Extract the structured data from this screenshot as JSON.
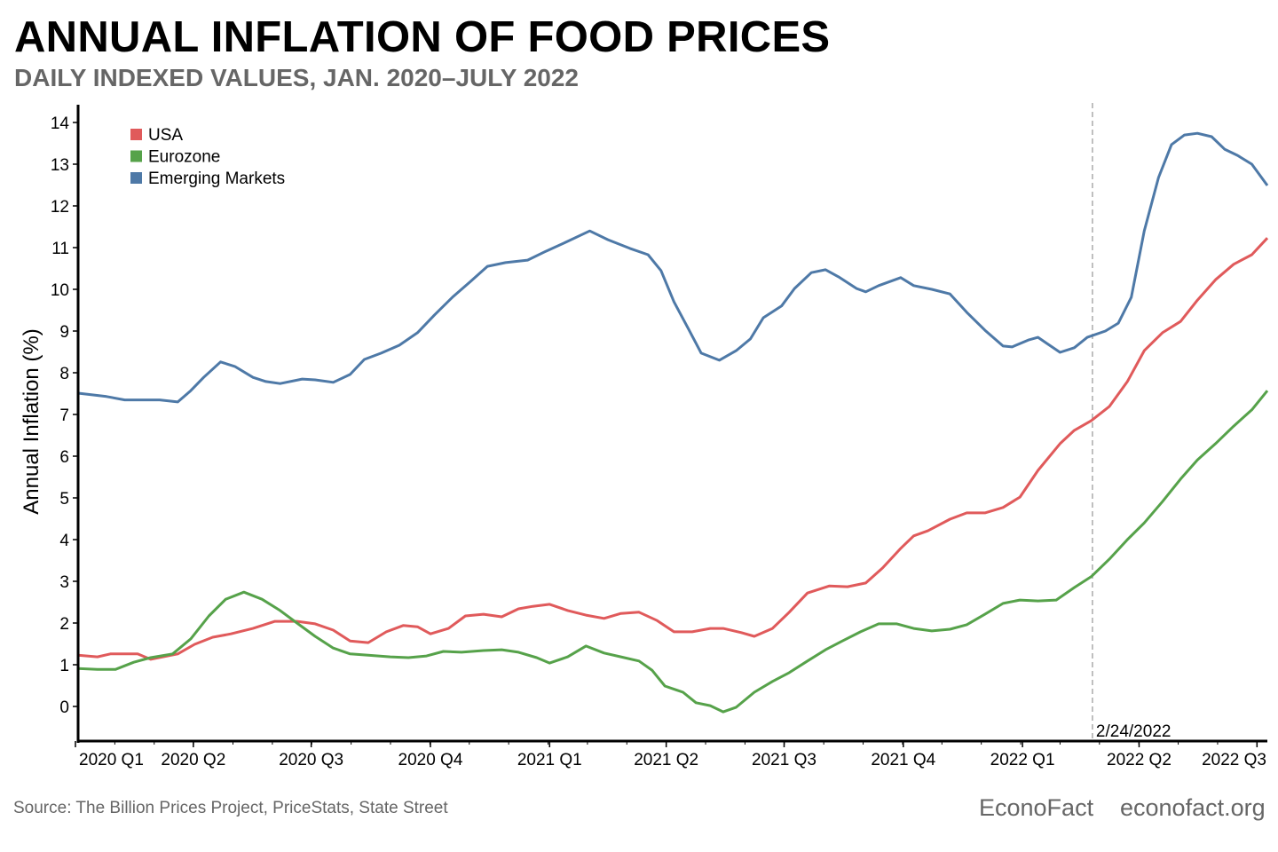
{
  "chart_data": {
    "type": "line",
    "title": "ANNUAL INFLATION OF FOOD PRICES",
    "subtitle": "DAILY INDEXED VALUES, JAN. 2020–JULY 2022",
    "xlabel": "",
    "ylabel": "Annual Inflation (%)",
    "x_unit": "days since 2020-01-01",
    "xlim": [
      0,
      920
    ],
    "ylim": [
      -0.85,
      14.6
    ],
    "yticks": [
      0,
      1,
      2,
      3,
      4,
      5,
      6,
      7,
      8,
      9,
      10,
      11,
      12,
      13,
      14
    ],
    "xticks": [
      {
        "label": "2020 Q1",
        "x": 0
      },
      {
        "label": "2020 Q2",
        "x": 91
      },
      {
        "label": "2020 Q3",
        "x": 182
      },
      {
        "label": "2020 Q4",
        "x": 274
      },
      {
        "label": "2021 Q1",
        "x": 366
      },
      {
        "label": "2021 Q2",
        "x": 456
      },
      {
        "label": "2021 Q3",
        "x": 547
      },
      {
        "label": "2021 Q4",
        "x": 639
      },
      {
        "label": "2022 Q1",
        "x": 731
      },
      {
        "label": "2022 Q2",
        "x": 821
      },
      {
        "label": "2022 Q3",
        "x": 912
      }
    ],
    "grid": false,
    "legend_position": "top-left",
    "annotation": {
      "label": "2/24/2022",
      "x": 785
    },
    "series": [
      {
        "name": "USA",
        "color": "#e05a5b",
        "x": [
          2,
          17,
          27,
          48,
          58,
          79,
          92,
          106,
          120,
          137,
          154,
          171,
          185,
          199,
          212,
          226,
          240,
          253,
          264,
          274,
          288,
          301,
          315,
          329,
          342,
          353,
          366,
          380,
          394,
          408,
          421,
          435,
          449,
          462,
          476,
          490,
          500,
          514,
          524,
          538,
          551,
          565,
          582,
          596,
          610,
          623,
          637,
          647,
          658,
          675,
          688,
          702,
          716,
          729,
          743,
          760,
          771,
          784,
          798,
          812,
          825,
          839,
          853,
          866,
          880,
          894,
          908,
          920
        ],
        "y": [
          1.23,
          1.19,
          1.26,
          1.26,
          1.13,
          1.26,
          1.49,
          1.66,
          1.74,
          1.87,
          2.04,
          2.04,
          1.98,
          1.83,
          1.57,
          1.53,
          1.79,
          1.94,
          1.91,
          1.74,
          1.87,
          2.17,
          2.21,
          2.15,
          2.34,
          2.4,
          2.45,
          2.3,
          2.19,
          2.11,
          2.23,
          2.26,
          2.06,
          1.79,
          1.79,
          1.87,
          1.87,
          1.77,
          1.68,
          1.87,
          2.26,
          2.72,
          2.89,
          2.87,
          2.96,
          3.32,
          3.79,
          4.09,
          4.21,
          4.49,
          4.64,
          4.64,
          4.77,
          5.02,
          5.66,
          6.3,
          6.62,
          6.85,
          7.19,
          7.79,
          8.53,
          8.96,
          9.23,
          9.74,
          10.23,
          10.6,
          10.83,
          11.23
        ]
      },
      {
        "name": "Eurozone",
        "color": "#56a24a",
        "x": [
          2,
          17,
          31,
          45,
          58,
          75,
          89,
          103,
          116,
          130,
          144,
          158,
          171,
          185,
          199,
          212,
          226,
          243,
          257,
          271,
          284,
          298,
          315,
          329,
          342,
          356,
          366,
          380,
          394,
          408,
          421,
          435,
          445,
          455,
          469,
          479,
          490,
          500,
          510,
          524,
          538,
          551,
          565,
          579,
          592,
          606,
          620,
          634,
          647,
          661,
          675,
          688,
          702,
          716,
          729,
          743,
          757,
          771,
          784,
          798,
          812,
          825,
          839,
          853,
          866,
          880,
          894,
          908,
          920
        ],
        "y": [
          0.91,
          0.89,
          0.89,
          1.06,
          1.17,
          1.26,
          1.62,
          2.17,
          2.57,
          2.74,
          2.57,
          2.3,
          2.0,
          1.68,
          1.4,
          1.26,
          1.23,
          1.19,
          1.17,
          1.21,
          1.32,
          1.3,
          1.34,
          1.36,
          1.3,
          1.17,
          1.04,
          1.19,
          1.45,
          1.28,
          1.19,
          1.09,
          0.87,
          0.49,
          0.34,
          0.09,
          0.02,
          -0.13,
          -0.02,
          0.34,
          0.6,
          0.81,
          1.09,
          1.36,
          1.57,
          1.79,
          1.98,
          1.98,
          1.87,
          1.81,
          1.85,
          1.96,
          2.21,
          2.47,
          2.55,
          2.53,
          2.55,
          2.85,
          3.11,
          3.53,
          4.0,
          4.4,
          4.91,
          5.45,
          5.91,
          6.3,
          6.72,
          7.11,
          7.57
        ]
      },
      {
        "name": "Emerging Markets",
        "color": "#4e79a7",
        "x": [
          2,
          24,
          38,
          65,
          79,
          89,
          99,
          112,
          123,
          137,
          147,
          158,
          175,
          185,
          199,
          212,
          223,
          236,
          250,
          264,
          277,
          291,
          305,
          318,
          332,
          349,
          363,
          380,
          397,
          411,
          428,
          442,
          452,
          462,
          473,
          483,
          497,
          510,
          521,
          531,
          545,
          555,
          568,
          579,
          589,
          603,
          610,
          620,
          637,
          647,
          661,
          675,
          688,
          702,
          716,
          723,
          736,
          743,
          750,
          760,
          771,
          781,
          795,
          805,
          815,
          825,
          836,
          846,
          856,
          866,
          877,
          887,
          897,
          908,
          920
        ],
        "y": [
          7.51,
          7.43,
          7.35,
          7.35,
          7.3,
          7.57,
          7.89,
          8.26,
          8.15,
          7.89,
          7.79,
          7.74,
          7.85,
          7.83,
          7.77,
          7.96,
          8.32,
          8.47,
          8.66,
          8.96,
          9.38,
          9.81,
          10.19,
          10.55,
          10.64,
          10.7,
          10.91,
          11.15,
          11.4,
          11.19,
          10.98,
          10.83,
          10.45,
          9.7,
          9.06,
          8.47,
          8.3,
          8.53,
          8.81,
          9.32,
          9.6,
          10.02,
          10.4,
          10.47,
          10.3,
          10.02,
          9.94,
          10.09,
          10.28,
          10.09,
          10.0,
          9.89,
          9.45,
          9.02,
          8.64,
          8.62,
          8.79,
          8.85,
          8.7,
          8.49,
          8.6,
          8.85,
          9.0,
          9.19,
          9.81,
          11.4,
          12.68,
          13.47,
          13.7,
          13.74,
          13.66,
          13.36,
          13.21,
          13.0,
          12.49
        ]
      }
    ]
  },
  "footer": {
    "source": "Source: The Billion Prices Project, PriceStats, State Street",
    "brand": "EconoFact",
    "site": "econofact.org"
  }
}
